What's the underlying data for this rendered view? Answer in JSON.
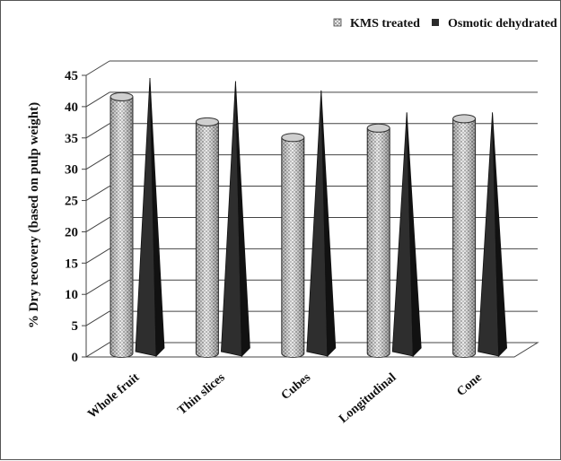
{
  "chart_data": {
    "type": "bar",
    "title": "",
    "xlabel": "",
    "ylabel": "% Dry recovery (based on pulp weight)",
    "ylim": [
      0,
      45
    ],
    "yticks": [
      0,
      5,
      10,
      15,
      20,
      25,
      30,
      35,
      40,
      45
    ],
    "categories": [
      "Whole fruit",
      "Thin slices",
      "Cubes",
      "Longitudinal",
      "Cone"
    ],
    "series": [
      {
        "name": "KMS treated",
        "shape": "cylinder",
        "pattern": "dotted",
        "color": "#d9d9d9",
        "values": [
          41,
          37,
          34.5,
          36,
          37.5
        ]
      },
      {
        "name": "Osmotic dehydrated",
        "shape": "pyramid",
        "pattern": "solid",
        "color": "#2b2b2b",
        "values": [
          44,
          43.5,
          42,
          38.5,
          38.5
        ]
      }
    ],
    "grid": true,
    "legend_position": "top-right"
  }
}
